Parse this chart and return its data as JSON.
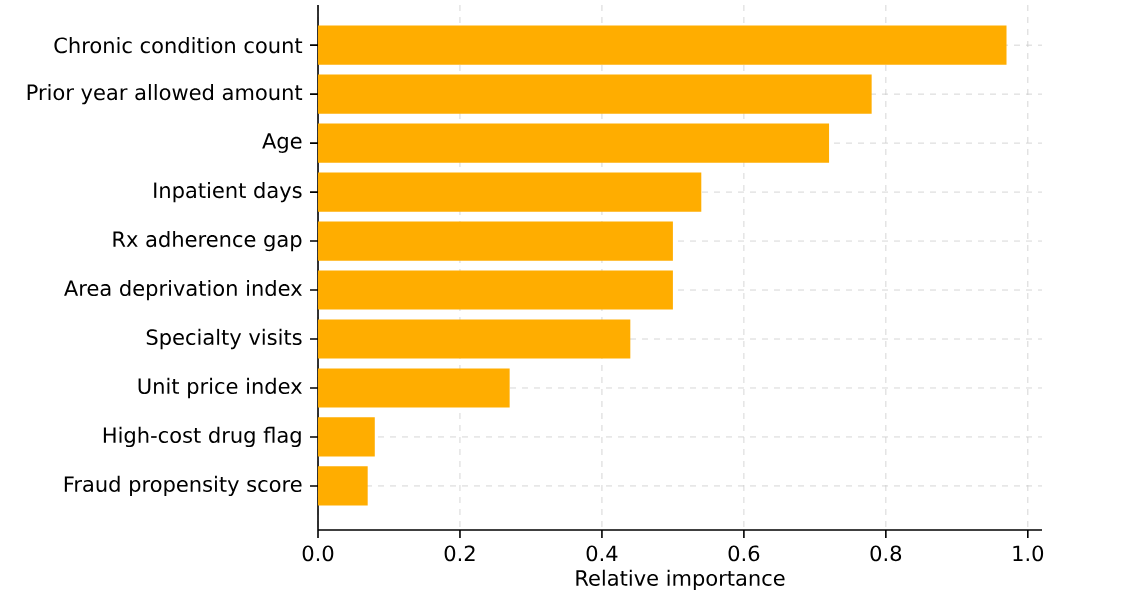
{
  "chart_data": {
    "type": "bar",
    "orientation": "horizontal",
    "xlabel": "Relative importance",
    "categories": [
      "Chronic condition count",
      "Prior year allowed amount",
      "Age",
      "Inpatient days",
      "Rx adherence gap",
      "Area deprivation index",
      "Specialty visits",
      "Unit price index",
      "High-cost drug flag",
      "Fraud propensity score"
    ],
    "values": [
      0.97,
      0.78,
      0.72,
      0.54,
      0.5,
      0.5,
      0.44,
      0.27,
      0.08,
      0.07
    ],
    "color": "#ffad00",
    "xlim": [
      0,
      1.02
    ],
    "xticks": [
      {
        "value": 0,
        "label": "0.0"
      },
      {
        "value": 0.2,
        "label": "0.2"
      },
      {
        "value": 0.4,
        "label": "0.4"
      },
      {
        "value": 0.6,
        "label": "0.6"
      },
      {
        "value": 0.8,
        "label": "0.8"
      },
      {
        "value": 1.0,
        "label": "1.0"
      }
    ],
    "grid": true
  }
}
